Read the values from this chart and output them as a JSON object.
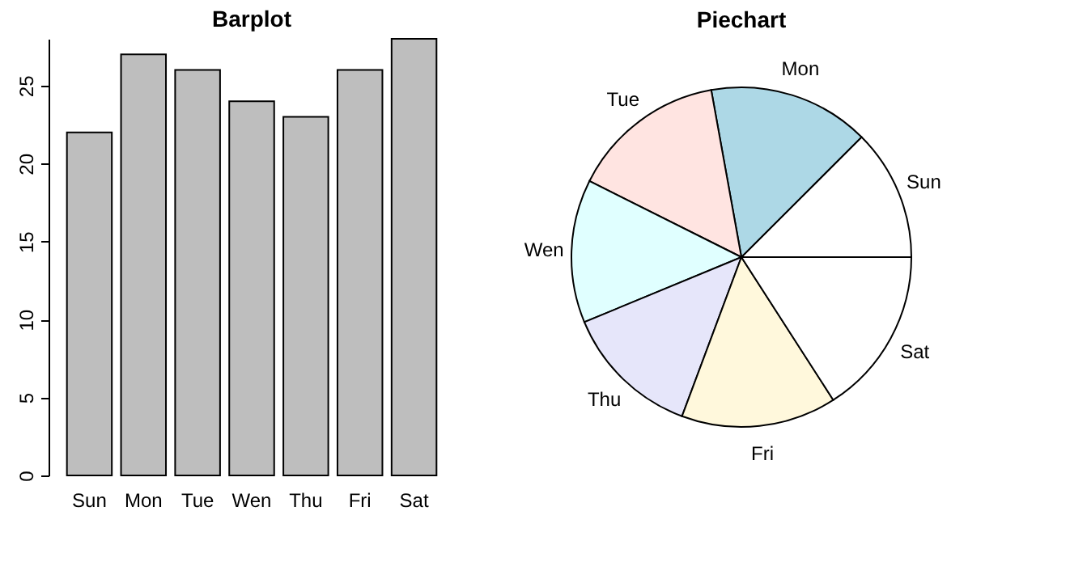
{
  "chart_data": [
    {
      "type": "bar",
      "title": "Barplot",
      "categories": [
        "Sun",
        "Mon",
        "Tue",
        "Wen",
        "Thu",
        "Fri",
        "Sat"
      ],
      "values": [
        22,
        27,
        26,
        24,
        23,
        26,
        28
      ],
      "color": "#bebebe",
      "ylim": [
        0,
        28
      ],
      "yticks": [
        0,
        5,
        10,
        15,
        20,
        25
      ],
      "grid": false
    },
    {
      "type": "pie",
      "title": "Piechart",
      "categories": [
        "Sun",
        "Mon",
        "Tue",
        "Wen",
        "Thu",
        "Fri",
        "Sat"
      ],
      "values": [
        12.5,
        15.34,
        14.77,
        13.64,
        13.07,
        14.77,
        15.91
      ],
      "colors": [
        "#ffffff",
        "#add8e6",
        "#ffe4e1",
        "#e0ffff",
        "#e6e6fa",
        "#fff8dc",
        "#ffffff"
      ],
      "legend": false
    }
  ]
}
